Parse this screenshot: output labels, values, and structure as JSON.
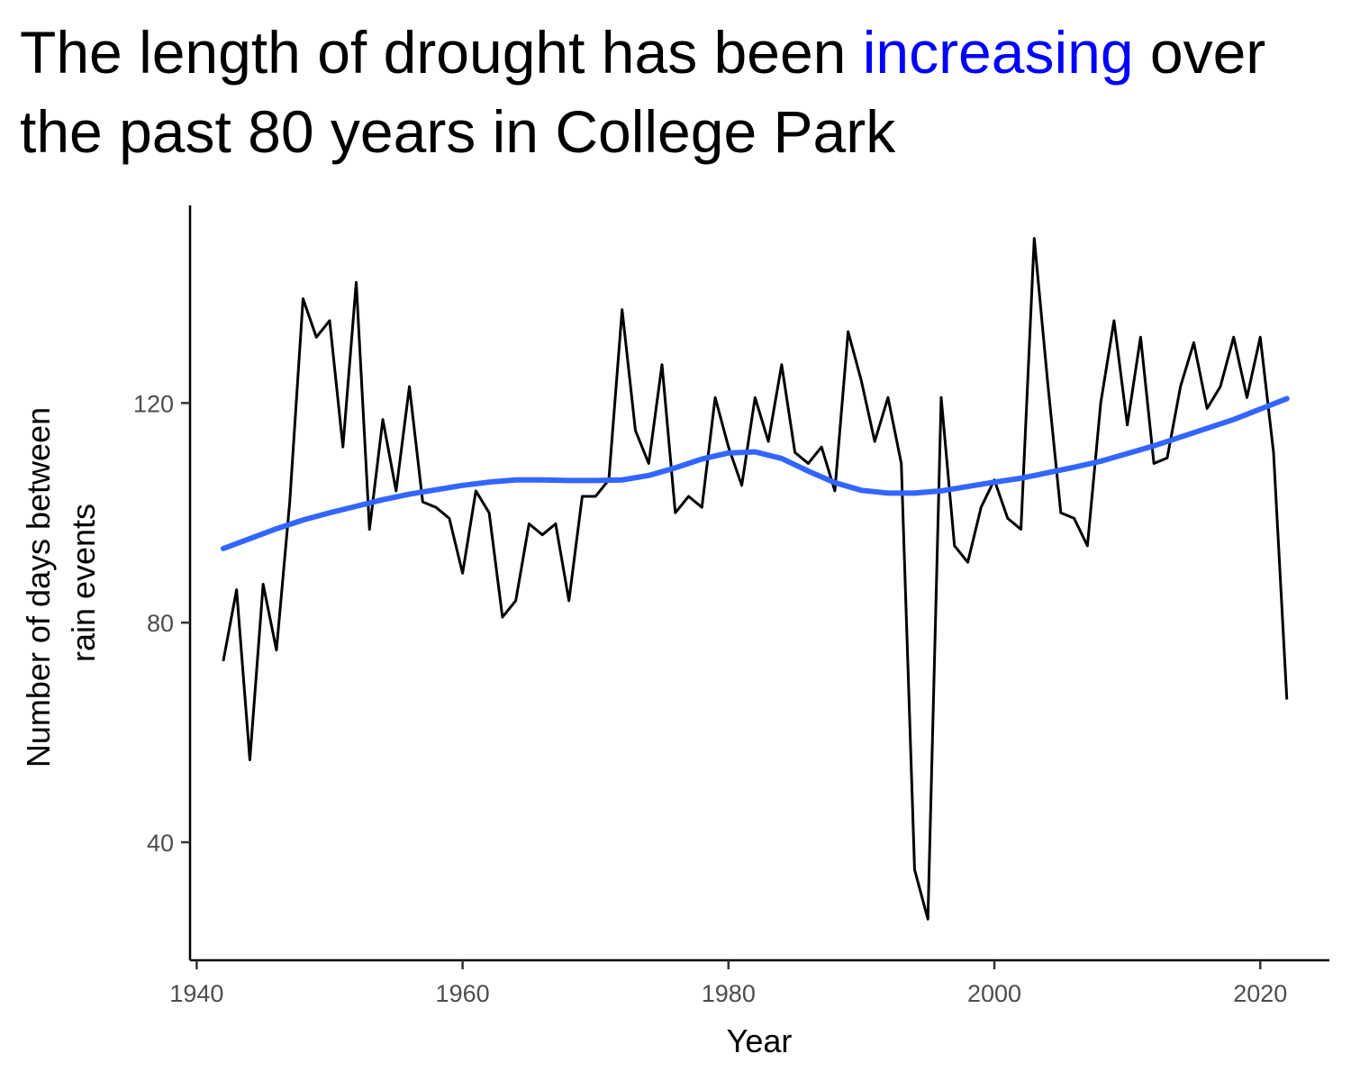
{
  "chart_data": {
    "type": "line",
    "title": {
      "before": "The length of drought has been ",
      "highlight": "increasing",
      "after": " over the past 80 years in College Park"
    },
    "xlabel": "Year",
    "ylabel_lines": [
      "Number of days between",
      "rain events"
    ],
    "xlim": [
      1939.5,
      2025.2
    ],
    "ylim": [
      18.5,
      156
    ],
    "x_ticks": [
      1940,
      1960,
      1980,
      2000,
      2020
    ],
    "y_ticks": [
      40,
      80,
      120
    ],
    "grid": false,
    "legend": "none",
    "colors": {
      "observed": "#000000",
      "trend": "#3366ff",
      "highlight": "#0000ff"
    },
    "series": [
      {
        "kind": "observed",
        "x": [
          1942,
          1943,
          1944,
          1945,
          1946,
          1947,
          1948,
          1949,
          1950,
          1951,
          1952,
          1953,
          1954,
          1955,
          1956,
          1957,
          1958,
          1959,
          1960,
          1961,
          1962,
          1963,
          1964,
          1965,
          1966,
          1967,
          1968,
          1969,
          1970,
          1971,
          1972,
          1973,
          1974,
          1975,
          1976,
          1977,
          1978,
          1979,
          1980,
          1981,
          1982,
          1983,
          1984,
          1985,
          1986,
          1987,
          1988,
          1989,
          1990,
          1991,
          1992,
          1993,
          1994,
          1995,
          1996,
          1997,
          1998,
          1999,
          2000,
          2001,
          2002,
          2003,
          2004,
          2005,
          2006,
          2007,
          2008,
          2009,
          2010,
          2011,
          2012,
          2013,
          2014,
          2015,
          2016,
          2017,
          2018,
          2019,
          2020,
          2021,
          2022
        ],
        "y": [
          73,
          86,
          55,
          87,
          75,
          102,
          139,
          132,
          135,
          112,
          142,
          97,
          117,
          104,
          123,
          102,
          101,
          99,
          89,
          104,
          100,
          81,
          84,
          98,
          96,
          98,
          84,
          103,
          103,
          106,
          137,
          115,
          109,
          127,
          100,
          103,
          101,
          121,
          112,
          105,
          121,
          113,
          127,
          111,
          109,
          112,
          104,
          133,
          124,
          113,
          121,
          109,
          35,
          26,
          121,
          94,
          91,
          101,
          106,
          99,
          97,
          150,
          124,
          100,
          99,
          94,
          120,
          135,
          116,
          132,
          109,
          110,
          123,
          131,
          119,
          123,
          132,
          121,
          132,
          111,
          66
        ]
      },
      {
        "kind": "trend",
        "x": [
          1942,
          1944,
          1946,
          1948,
          1950,
          1952,
          1954,
          1956,
          1958,
          1960,
          1962,
          1964,
          1966,
          1968,
          1970,
          1972,
          1974,
          1976,
          1978,
          1980,
          1982,
          1984,
          1986,
          1988,
          1990,
          1992,
          1994,
          1996,
          1998,
          2000,
          2002,
          2004,
          2006,
          2008,
          2010,
          2012,
          2014,
          2016,
          2018,
          2020,
          2022
        ],
        "y": [
          93.5,
          95.3,
          97.1,
          98.7,
          100.0,
          101.2,
          102.4,
          103.4,
          104.2,
          105.0,
          105.6,
          106.0,
          106.0,
          105.9,
          105.9,
          106.0,
          106.8,
          108.2,
          109.8,
          110.9,
          111.1,
          109.9,
          107.6,
          105.5,
          104.1,
          103.6,
          103.6,
          104.0,
          104.8,
          105.6,
          106.3,
          107.3,
          108.3,
          109.4,
          110.8,
          112.2,
          113.8,
          115.4,
          117.0,
          118.9,
          120.8
        ]
      }
    ]
  }
}
